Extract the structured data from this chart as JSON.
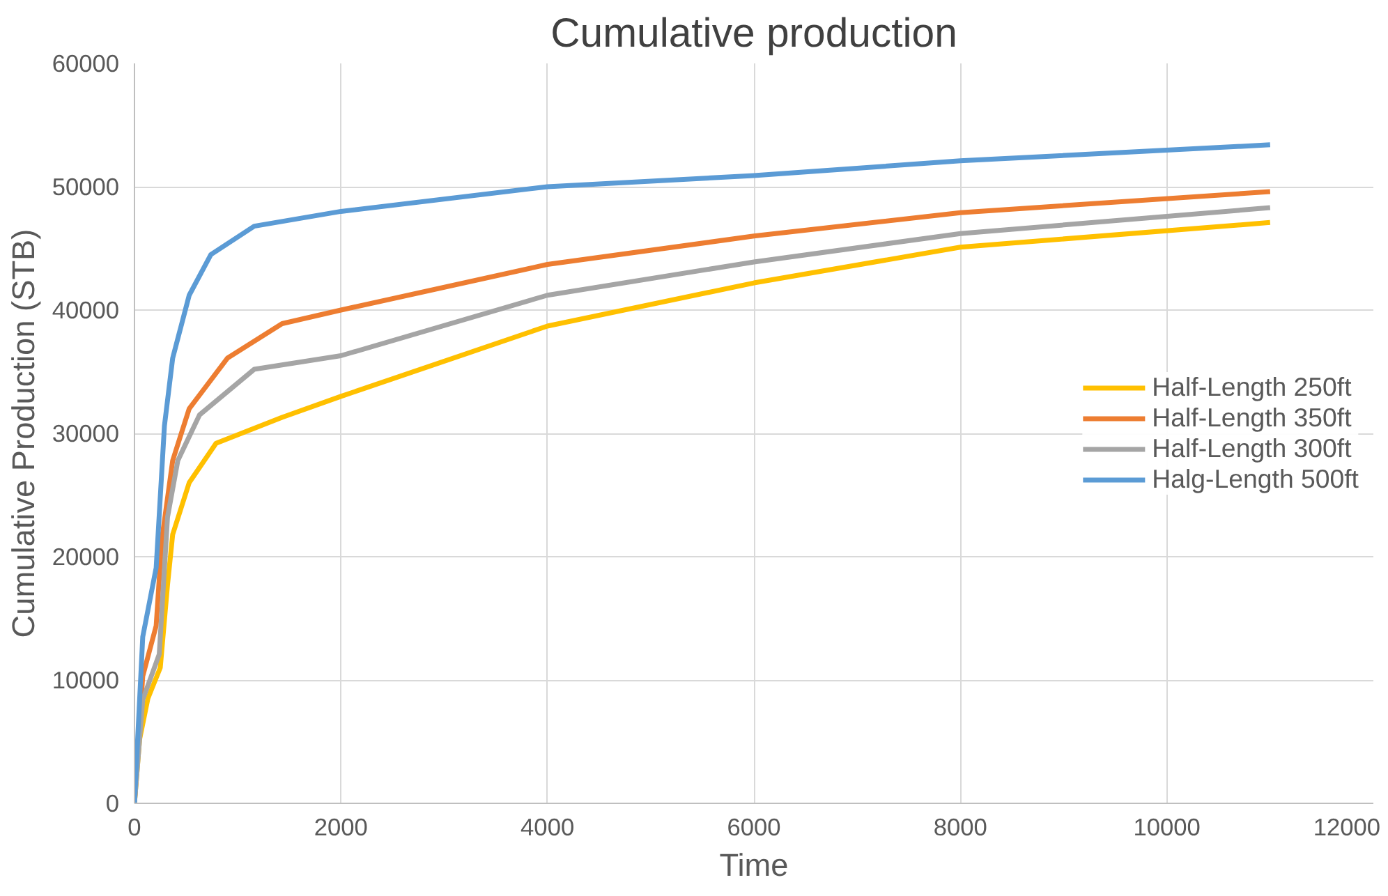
{
  "chart_data": {
    "type": "line",
    "title": "Cumulative production",
    "xlabel": "Time",
    "ylabel": "Cumulative Production (STB)",
    "xlim": [
      0,
      12000
    ],
    "ylim": [
      0,
      60000
    ],
    "xticks": [
      0,
      2000,
      4000,
      6000,
      8000,
      10000,
      12000
    ],
    "yticks": [
      0,
      10000,
      20000,
      30000,
      40000,
      50000,
      60000
    ],
    "grid": true,
    "legend": "right",
    "marker": "none",
    "line_style": "solid",
    "series": [
      {
        "name": "Half-Length 250ft",
        "color": "#ffc000",
        "x": [
          0,
          50,
          130,
          250,
          320,
          370,
          530,
          790,
          1430,
          2000,
          4000,
          6000,
          8000,
          11000
        ],
        "values": [
          0,
          5200,
          8500,
          11000,
          17700,
          21800,
          26000,
          29200,
          31300,
          33000,
          38700,
          42200,
          45100,
          47100
        ]
      },
      {
        "name": "Half-Length 350ft",
        "color": "#ed7d31",
        "x": [
          0,
          80,
          210,
          265,
          370,
          530,
          900,
          1430,
          2000,
          4000,
          6000,
          8000,
          11000
        ],
        "values": [
          0,
          10300,
          14400,
          21400,
          27800,
          32000,
          36100,
          38900,
          40000,
          43700,
          46000,
          47900,
          49600
        ]
      },
      {
        "name": "Half-Length 300ft",
        "color": "#a5a5a5",
        "x": [
          0,
          80,
          240,
          320,
          420,
          630,
          1160,
          2000,
          4000,
          6000,
          8000,
          11000
        ],
        "values": [
          0,
          8400,
          12100,
          23200,
          27800,
          31500,
          35200,
          36300,
          41200,
          43900,
          46200,
          48300
        ]
      },
      {
        "name": "Halg-Length 500ft",
        "color": "#5b9bd5",
        "x": [
          0,
          80,
          210,
          290,
          370,
          530,
          740,
          1160,
          2000,
          4000,
          6000,
          8000,
          11000
        ],
        "values": [
          0,
          13500,
          19100,
          30600,
          36100,
          41200,
          44500,
          46800,
          48000,
          50000,
          50900,
          52100,
          53400
        ]
      }
    ]
  }
}
